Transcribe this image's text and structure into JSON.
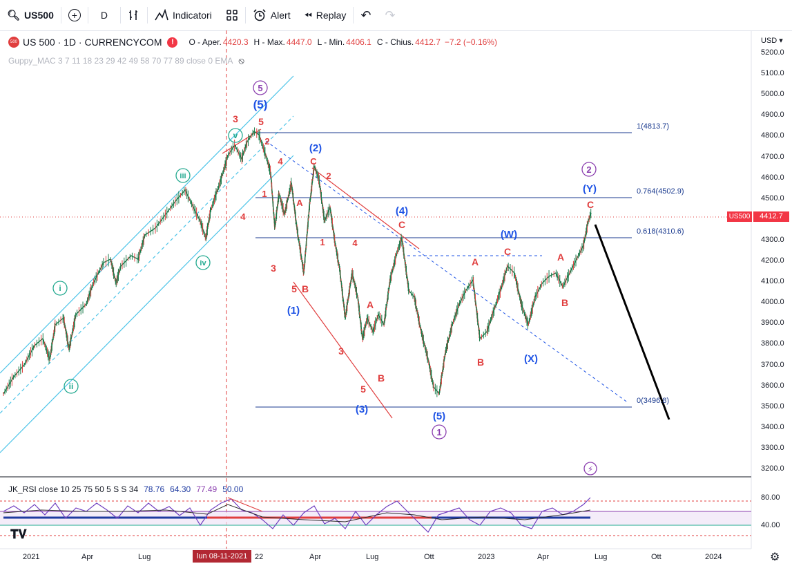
{
  "toolbar": {
    "symbol": "US500",
    "interval": "D",
    "indicators_label": "Indicatori",
    "alert_label": "Alert",
    "replay_label": "Replay"
  },
  "legend": {
    "title": "US 500 · 1D · CURRENCYCOM",
    "open_label": "O - Aper.",
    "open": "4420.3",
    "high_label": "H - Max.",
    "high": "4447.0",
    "low_label": "L - Min.",
    "low": "4406.1",
    "close_label": "C - Chius.",
    "close": "4412.7",
    "change": "−7.2 (−0.16%)",
    "indicator": "Guppy_MAC 3 7 11 18 23 29 42 49 58 70 77 89 close 0 EMA"
  },
  "rsi": {
    "label": "JK_RSI close 10 25 75 50 5 S S 34",
    "values": [
      "78.76",
      "64.30",
      "77.49",
      "50.00"
    ],
    "axis": [
      "80.00",
      "40.00"
    ]
  },
  "price_axis": {
    "currency": "USD",
    "ticks": [
      "5200.0",
      "5100.0",
      "5000.0",
      "4900.0",
      "4800.0",
      "4700.0",
      "4600.0",
      "4500.0",
      "4400.0",
      "4300.0",
      "4200.0",
      "4100.0",
      "4000.0",
      "3900.0",
      "3800.0",
      "3700.0",
      "3600.0",
      "3500.0",
      "3400.0",
      "3300.0",
      "3200.0"
    ],
    "badge_symbol": "US500",
    "badge_price": "4412.7"
  },
  "time_axis": {
    "ticks": [
      "2021",
      "Apr",
      "Lug",
      "22",
      "Apr",
      "Lug",
      "Ott",
      "2023",
      "Apr",
      "Lug",
      "Ott",
      "2024"
    ],
    "crosshair_date": "lun 08-11-2021"
  },
  "fib": {
    "l1": "1(4813.7)",
    "l764": "0.764(4502.9)",
    "l618": "0.618(4310.6)",
    "l0": "0(3496.8)"
  },
  "colors": {
    "accent_blue": "#1e53e5",
    "wave_red": "#e03e3e",
    "channel": "#4dc4e8",
    "purple": "#8b3faf",
    "teal": "#22a98f"
  },
  "waves": {
    "top5_circle": "5",
    "top5_blue": "(5)",
    "v_circle": "v",
    "iii_circle": "iii",
    "iv_circle": "iv",
    "i_circle": "i",
    "ii_circle": "ii",
    "r3": "3",
    "r5": "5",
    "r2a": "2",
    "r4a": "4",
    "r1a": "1",
    "r4b": "4",
    "r3b": "3",
    "r5b": "5",
    "rB1": "B",
    "b1": "(1)",
    "b2": "(2)",
    "rC1": "C",
    "r2b": "2",
    "rA1": "A",
    "r1b": "1",
    "r4c": "4",
    "r3c": "3",
    "r5c": "5",
    "rA2": "A",
    "rB2": "B",
    "b3": "(3)",
    "b4": "(4)",
    "rC2": "C",
    "b5": "(5)",
    "one_circle": "1",
    "bW": "(W)",
    "rA3": "A",
    "rC3": "C",
    "rB3": "B",
    "bX": "(X)",
    "rA4": "A",
    "rB4": "B",
    "rC4": "C",
    "bY": "(Y)",
    "two_circle": "2"
  }
}
